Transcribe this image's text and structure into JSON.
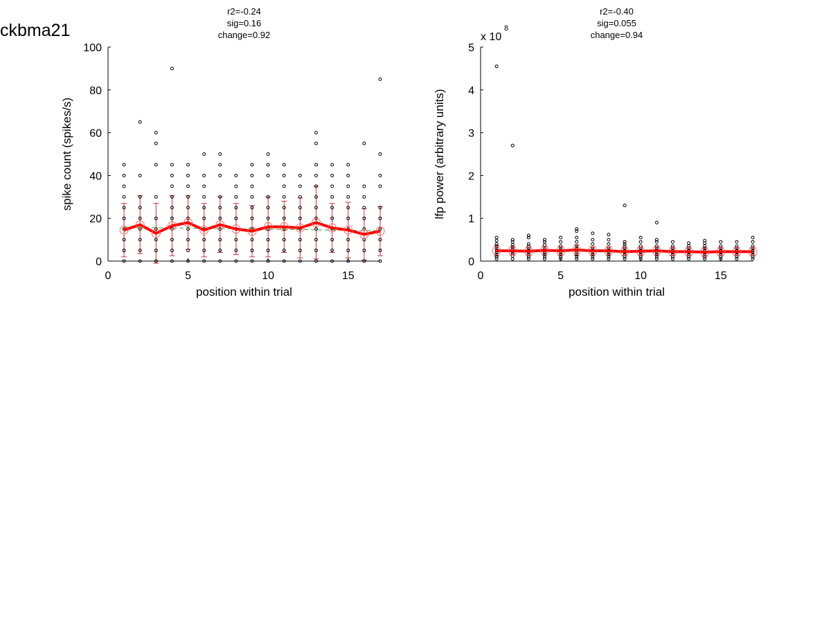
{
  "figure_label": "ckbma21",
  "chart_data": [
    {
      "type": "scatter",
      "title_lines": [
        "r2=-0.24",
        "sig=0.16",
        "change=0.92"
      ],
      "xlabel": "position within trial",
      "ylabel": "spike count (spikes/s)",
      "xlim": [
        0,
        17
      ],
      "ylim": [
        0,
        100
      ],
      "xticks": [
        0,
        5,
        10,
        15
      ],
      "yticks": [
        0,
        20,
        40,
        60,
        80,
        100
      ],
      "exponent_label": "",
      "grid": false,
      "series": [
        {
          "kind": "points",
          "x": [
            1,
            1,
            1,
            1,
            1,
            1,
            1,
            1,
            1,
            1,
            2,
            2,
            2,
            2,
            2,
            2,
            2,
            2,
            2,
            3,
            3,
            3,
            3,
            3,
            3,
            3,
            3,
            3,
            4,
            4,
            4,
            4,
            4,
            4,
            4,
            4,
            4,
            4,
            4,
            5,
            5,
            5,
            5,
            5,
            5,
            5,
            5,
            5,
            5,
            6,
            6,
            6,
            6,
            6,
            6,
            6,
            6,
            6,
            6,
            7,
            7,
            7,
            7,
            7,
            7,
            7,
            7,
            7,
            7,
            8,
            8,
            8,
            8,
            8,
            8,
            8,
            8,
            8,
            9,
            9,
            9,
            9,
            9,
            9,
            9,
            9,
            9,
            9,
            10,
            10,
            10,
            10,
            10,
            10,
            10,
            10,
            10,
            10,
            11,
            11,
            11,
            11,
            11,
            11,
            11,
            11,
            11,
            11,
            12,
            12,
            12,
            12,
            12,
            12,
            12,
            12,
            12,
            13,
            13,
            13,
            13,
            13,
            13,
            13,
            13,
            13,
            13,
            13,
            13,
            14,
            14,
            14,
            14,
            14,
            14,
            14,
            14,
            14,
            14,
            15,
            15,
            15,
            15,
            15,
            15,
            15,
            15,
            15,
            15,
            16,
            16,
            16,
            16,
            16,
            16,
            16,
            16,
            16,
            17,
            17,
            17,
            17,
            17,
            17,
            17,
            17,
            17,
            17
          ],
          "y": [
            0,
            5,
            10,
            15,
            20,
            25,
            30,
            35,
            40,
            45,
            0,
            5,
            10,
            15,
            20,
            25,
            30,
            40,
            65,
            0,
            5,
            10,
            15,
            20,
            30,
            45,
            55,
            60,
            0,
            5,
            10,
            15,
            20,
            25,
            30,
            35,
            40,
            45,
            90,
            0,
            5,
            10,
            15,
            20,
            25,
            30,
            35,
            40,
            45,
            0,
            5,
            10,
            15,
            20,
            25,
            30,
            35,
            40,
            50,
            0,
            5,
            10,
            15,
            20,
            25,
            30,
            40,
            45,
            50,
            0,
            5,
            10,
            15,
            20,
            25,
            30,
            35,
            40,
            0,
            5,
            10,
            15,
            20,
            25,
            30,
            35,
            40,
            45,
            0,
            5,
            10,
            15,
            20,
            25,
            30,
            40,
            45,
            50,
            0,
            5,
            10,
            15,
            20,
            25,
            30,
            35,
            40,
            45,
            0,
            5,
            10,
            15,
            20,
            25,
            30,
            35,
            40,
            0,
            5,
            10,
            15,
            20,
            25,
            30,
            35,
            40,
            45,
            55,
            60,
            0,
            5,
            10,
            15,
            20,
            25,
            30,
            35,
            40,
            45,
            0,
            5,
            10,
            15,
            20,
            25,
            30,
            35,
            40,
            45,
            0,
            5,
            10,
            15,
            20,
            25,
            30,
            35,
            55,
            0,
            5,
            10,
            15,
            20,
            25,
            35,
            40,
            50,
            85
          ]
        },
        {
          "kind": "mean",
          "x": [
            1,
            2,
            3,
            4,
            5,
            6,
            7,
            8,
            9,
            10,
            11,
            12,
            13,
            14,
            15,
            16,
            17
          ],
          "y": [
            14.5,
            17,
            13,
            16.5,
            18,
            14.5,
            17,
            15,
            14,
            16,
            16,
            15.5,
            18,
            15.5,
            14.5,
            12.5,
            14
          ],
          "err": [
            12.5,
            13.5,
            14,
            14,
            12.5,
            12.5,
            13,
            12,
            12,
            14,
            12,
            14,
            17,
            11.5,
            13,
            12,
            11.5
          ]
        },
        {
          "kind": "fit",
          "x": [
            1,
            17
          ],
          "y": [
            15.8,
            14.2
          ]
        }
      ]
    },
    {
      "type": "scatter",
      "title_lines": [
        "r2=-0.40",
        "sig=0.055",
        "change=0.94"
      ],
      "xlabel": "position within trial",
      "ylabel": "lfp power (arbitrary units)",
      "xlim": [
        0,
        17
      ],
      "ylim": [
        0,
        5
      ],
      "xticks": [
        0,
        5,
        10,
        15
      ],
      "yticks": [
        0,
        1,
        2,
        3,
        4,
        5
      ],
      "exponent_label": "x 10",
      "exponent_power": "8",
      "grid": false,
      "series": [
        {
          "kind": "points",
          "x": [
            1,
            1,
            1,
            1,
            1,
            1,
            1,
            1,
            1,
            1,
            1,
            2,
            2,
            2,
            2,
            2,
            2,
            2,
            2,
            2,
            2,
            3,
            3,
            3,
            3,
            3,
            3,
            3,
            3,
            3,
            3,
            4,
            4,
            4,
            4,
            4,
            4,
            4,
            4,
            4,
            5,
            5,
            5,
            5,
            5,
            5,
            5,
            5,
            5,
            6,
            6,
            6,
            6,
            6,
            6,
            6,
            6,
            6,
            6,
            7,
            7,
            7,
            7,
            7,
            7,
            7,
            7,
            7,
            8,
            8,
            8,
            8,
            8,
            8,
            8,
            8,
            8,
            9,
            9,
            9,
            9,
            9,
            9,
            9,
            9,
            9,
            9,
            10,
            10,
            10,
            10,
            10,
            10,
            10,
            10,
            10,
            11,
            11,
            11,
            11,
            11,
            11,
            11,
            11,
            11,
            11,
            12,
            12,
            12,
            12,
            12,
            12,
            12,
            12,
            13,
            13,
            13,
            13,
            13,
            13,
            13,
            13,
            14,
            14,
            14,
            14,
            14,
            14,
            14,
            14,
            14,
            15,
            15,
            15,
            15,
            15,
            15,
            15,
            15,
            16,
            16,
            16,
            16,
            16,
            16,
            16,
            16,
            17,
            17,
            17,
            17,
            17,
            17,
            17,
            17,
            17
          ],
          "y": [
            0.05,
            0.1,
            0.15,
            0.2,
            0.25,
            0.3,
            0.35,
            0.4,
            0.48,
            0.55,
            4.55,
            0.05,
            0.12,
            0.18,
            0.22,
            0.28,
            0.33,
            0.38,
            0.45,
            0.5,
            2.7,
            0.05,
            0.1,
            0.15,
            0.2,
            0.25,
            0.3,
            0.35,
            0.4,
            0.55,
            0.6,
            0.05,
            0.1,
            0.15,
            0.2,
            0.25,
            0.3,
            0.38,
            0.45,
            0.5,
            0.05,
            0.1,
            0.15,
            0.2,
            0.25,
            0.3,
            0.35,
            0.45,
            0.55,
            0.05,
            0.1,
            0.15,
            0.2,
            0.3,
            0.35,
            0.45,
            0.55,
            0.7,
            0.75,
            0.05,
            0.1,
            0.15,
            0.2,
            0.25,
            0.3,
            0.4,
            0.5,
            0.65,
            0.05,
            0.1,
            0.15,
            0.2,
            0.25,
            0.3,
            0.4,
            0.5,
            0.62,
            0.05,
            0.1,
            0.15,
            0.2,
            0.25,
            0.3,
            0.35,
            0.4,
            0.45,
            1.3,
            0.05,
            0.1,
            0.15,
            0.2,
            0.25,
            0.3,
            0.35,
            0.45,
            0.55,
            0.05,
            0.1,
            0.15,
            0.2,
            0.25,
            0.3,
            0.35,
            0.45,
            0.5,
            0.9,
            0.05,
            0.1,
            0.15,
            0.2,
            0.25,
            0.3,
            0.35,
            0.45,
            0.05,
            0.1,
            0.15,
            0.2,
            0.25,
            0.3,
            0.35,
            0.42,
            0.05,
            0.1,
            0.15,
            0.2,
            0.25,
            0.3,
            0.35,
            0.42,
            0.48,
            0.05,
            0.1,
            0.15,
            0.2,
            0.25,
            0.3,
            0.35,
            0.45,
            0.05,
            0.1,
            0.15,
            0.2,
            0.25,
            0.3,
            0.35,
            0.45,
            0.05,
            0.1,
            0.15,
            0.2,
            0.25,
            0.3,
            0.35,
            0.45,
            0.55
          ]
        },
        {
          "kind": "mean",
          "x": [
            1,
            2,
            3,
            4,
            5,
            6,
            7,
            8,
            9,
            10,
            11,
            12,
            13,
            14,
            15,
            16,
            17
          ],
          "y": [
            0.24,
            0.24,
            0.23,
            0.25,
            0.24,
            0.26,
            0.24,
            0.24,
            0.22,
            0.23,
            0.24,
            0.22,
            0.22,
            0.21,
            0.22,
            0.22,
            0.22
          ],
          "err": [
            0.12,
            0.1,
            0.1,
            0.1,
            0.1,
            0.12,
            0.1,
            0.1,
            0.1,
            0.1,
            0.1,
            0.1,
            0.1,
            0.1,
            0.1,
            0.1,
            0.1
          ]
        },
        {
          "kind": "fit",
          "x": [
            1,
            17
          ],
          "y": [
            0.26,
            0.21
          ]
        }
      ]
    }
  ],
  "colors": {
    "points": "#000000",
    "mean_line": "#ff0000",
    "mean_marker": "#ff6666",
    "errorbar": "#cc3333",
    "fit": "#33aa33"
  }
}
